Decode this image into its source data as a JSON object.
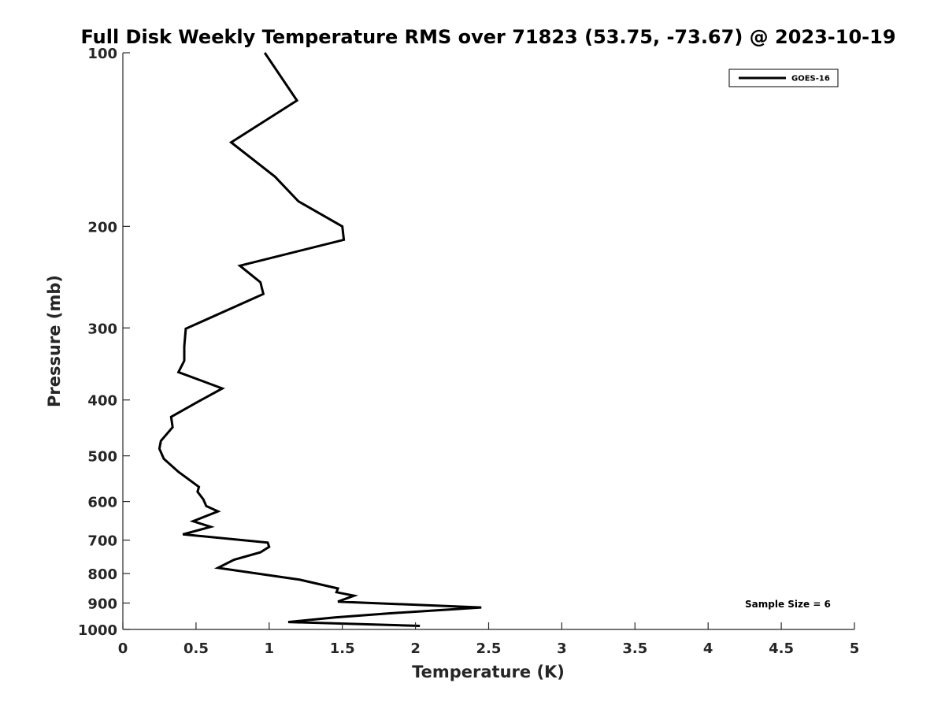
{
  "chart_data": {
    "type": "line",
    "title": "Full Disk Weekly Temperature RMS over 71823 (53.75, -73.67) @ 2023-10-19",
    "xlabel": "Temperature (K)",
    "ylabel": "Pressure (mb)",
    "xlim": [
      0,
      5
    ],
    "ylim": [
      100,
      1000
    ],
    "y_scale": "log",
    "y_reversed": true,
    "x_ticks": [
      0,
      0.5,
      1,
      1.5,
      2,
      2.5,
      3,
      3.5,
      4,
      4.5,
      5
    ],
    "x_tick_labels": [
      "0",
      "0.5",
      "1",
      "1.5",
      "2",
      "2.5",
      "3",
      "3.5",
      "4",
      "4.5",
      "5"
    ],
    "y_ticks": [
      100,
      200,
      300,
      400,
      500,
      600,
      700,
      800,
      900,
      1000
    ],
    "y_tick_labels": [
      "100",
      "200",
      "300",
      "400",
      "500",
      "600",
      "700",
      "800",
      "900",
      "1000"
    ],
    "grid": false,
    "legend_position": "top-right",
    "annotation": "Sample Size = 6",
    "series": [
      {
        "name": "GOES-16",
        "color": "#000000",
        "points": [
          [
            0.97,
            100
          ],
          [
            1.19,
            121
          ],
          [
            0.74,
            143
          ],
          [
            1.04,
            164
          ],
          [
            1.2,
            181
          ],
          [
            1.5,
            200
          ],
          [
            1.51,
            211
          ],
          [
            0.8,
            234
          ],
          [
            0.94,
            250
          ],
          [
            0.96,
            262
          ],
          [
            0.43,
            301
          ],
          [
            0.42,
            323
          ],
          [
            0.42,
            342
          ],
          [
            0.38,
            358
          ],
          [
            0.68,
            382
          ],
          [
            0.52,
            402
          ],
          [
            0.33,
            428
          ],
          [
            0.34,
            446
          ],
          [
            0.26,
            471
          ],
          [
            0.25,
            486
          ],
          [
            0.28,
            506
          ],
          [
            0.38,
            533
          ],
          [
            0.52,
            566
          ],
          [
            0.51,
            577
          ],
          [
            0.55,
            595
          ],
          [
            0.57,
            611
          ],
          [
            0.65,
            624
          ],
          [
            0.48,
            649
          ],
          [
            0.6,
            664
          ],
          [
            0.41,
            684
          ],
          [
            0.99,
            707
          ],
          [
            1.0,
            719
          ],
          [
            0.94,
            735
          ],
          [
            0.76,
            757
          ],
          [
            0.65,
            782
          ],
          [
            1.21,
            820
          ],
          [
            1.47,
            849
          ],
          [
            1.46,
            862
          ],
          [
            1.58,
            874
          ],
          [
            1.47,
            895
          ],
          [
            2.45,
            916
          ],
          [
            1.81,
            938
          ],
          [
            1.45,
            953
          ],
          [
            1.13,
            971
          ],
          [
            2.03,
            986
          ]
        ]
      }
    ]
  }
}
